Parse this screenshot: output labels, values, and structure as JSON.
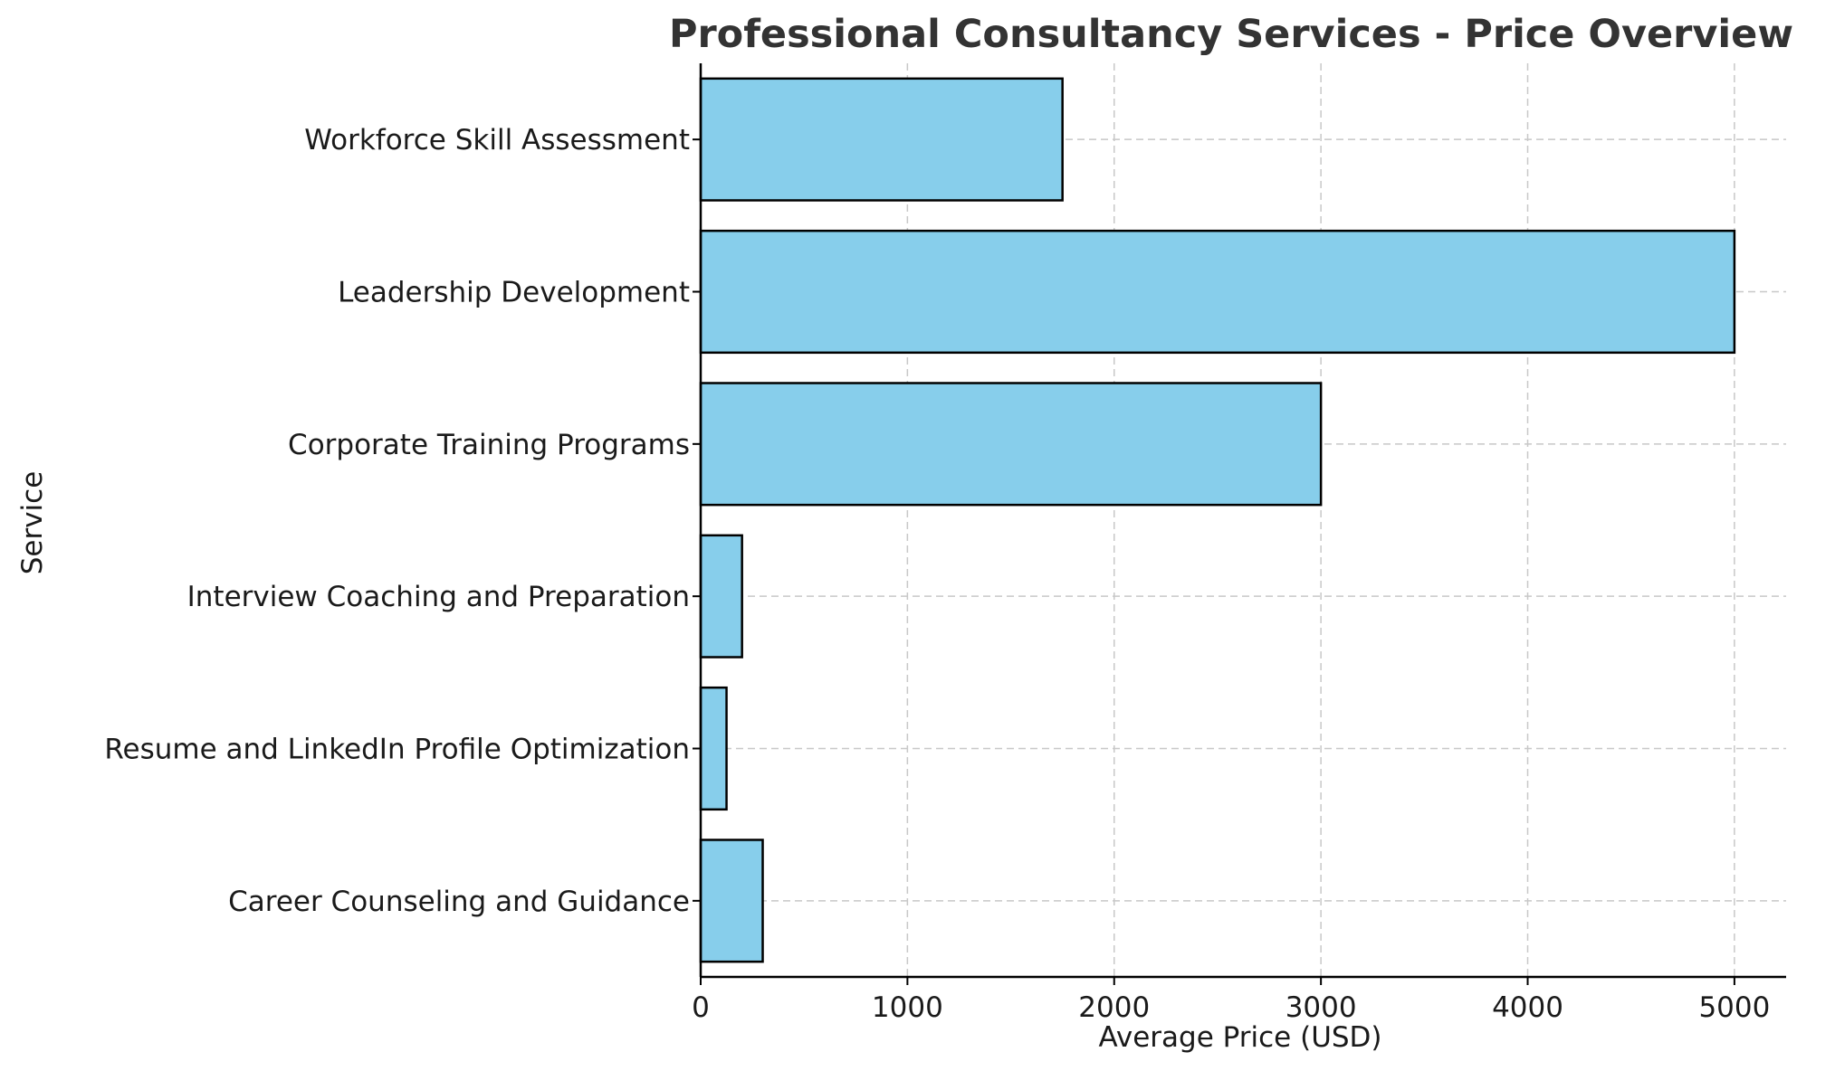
{
  "chart_data": {
    "type": "bar",
    "orientation": "horizontal",
    "title": "Professional Consultancy Services - Price Overview",
    "xlabel": "Average Price (USD)",
    "ylabel": "Service",
    "categories": [
      "Career Counseling and Guidance",
      "Resume and LinkedIn Profile Optimization",
      "Interview Coaching and Preparation",
      "Corporate Training Programs",
      "Leadership Development",
      "Workforce Skill Assessment"
    ],
    "values": [
      300,
      125,
      200,
      3000,
      5000,
      1750
    ],
    "xlim": [
      0,
      5250
    ],
    "xticks": [
      0,
      1000,
      2000,
      3000,
      4000,
      5000
    ],
    "grid": true,
    "bar_color": "#87CEEB",
    "bar_edge_color": "#000000"
  }
}
